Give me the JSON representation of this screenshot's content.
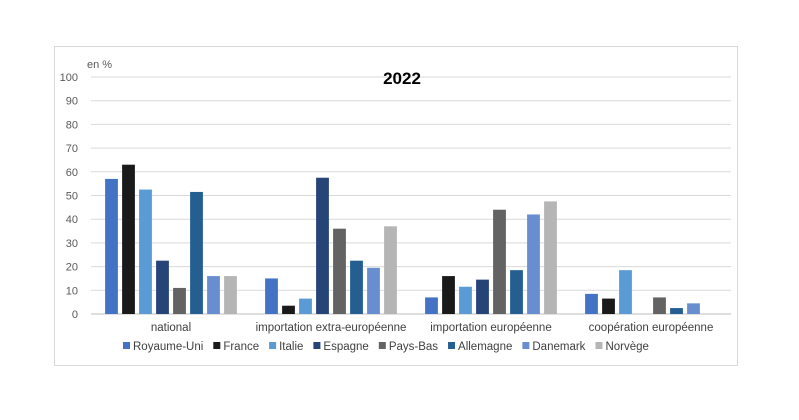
{
  "chart_data": {
    "type": "bar",
    "title": "2022",
    "unit_label": "en %",
    "ylim": [
      0,
      100
    ],
    "yticks": [
      0,
      10,
      20,
      30,
      40,
      50,
      60,
      70,
      80,
      90,
      100
    ],
    "grid": true,
    "legend_position": "bottom",
    "categories": [
      "national",
      "importation extra-européenne",
      "importation européenne",
      "coopération européenne"
    ],
    "series": [
      {
        "name": "Royaume-Uni",
        "color": "#4472c4",
        "values": [
          57,
          15,
          7,
          8.5
        ]
      },
      {
        "name": "France",
        "color": "#1a1a1a",
        "values": [
          63,
          3.5,
          16,
          6.5
        ]
      },
      {
        "name": "Italie",
        "color": "#5b9bd5",
        "values": [
          52.5,
          6.5,
          11.5,
          18.5
        ]
      },
      {
        "name": "Espagne",
        "color": "#264478",
        "values": [
          22.5,
          57.5,
          14.5,
          0
        ]
      },
      {
        "name": "Pays-Bas",
        "color": "#636363",
        "values": [
          11,
          36,
          44,
          7
        ]
      },
      {
        "name": "Allemagne",
        "color": "#255e91",
        "values": [
          51.5,
          22.5,
          18.5,
          2.5
        ]
      },
      {
        "name": "Danemark",
        "color": "#698ed0",
        "values": [
          16,
          19.5,
          42,
          4.5
        ]
      },
      {
        "name": "Norvège",
        "color": "#b5b5b5",
        "values": [
          16,
          37,
          47.5,
          0
        ]
      }
    ]
  }
}
